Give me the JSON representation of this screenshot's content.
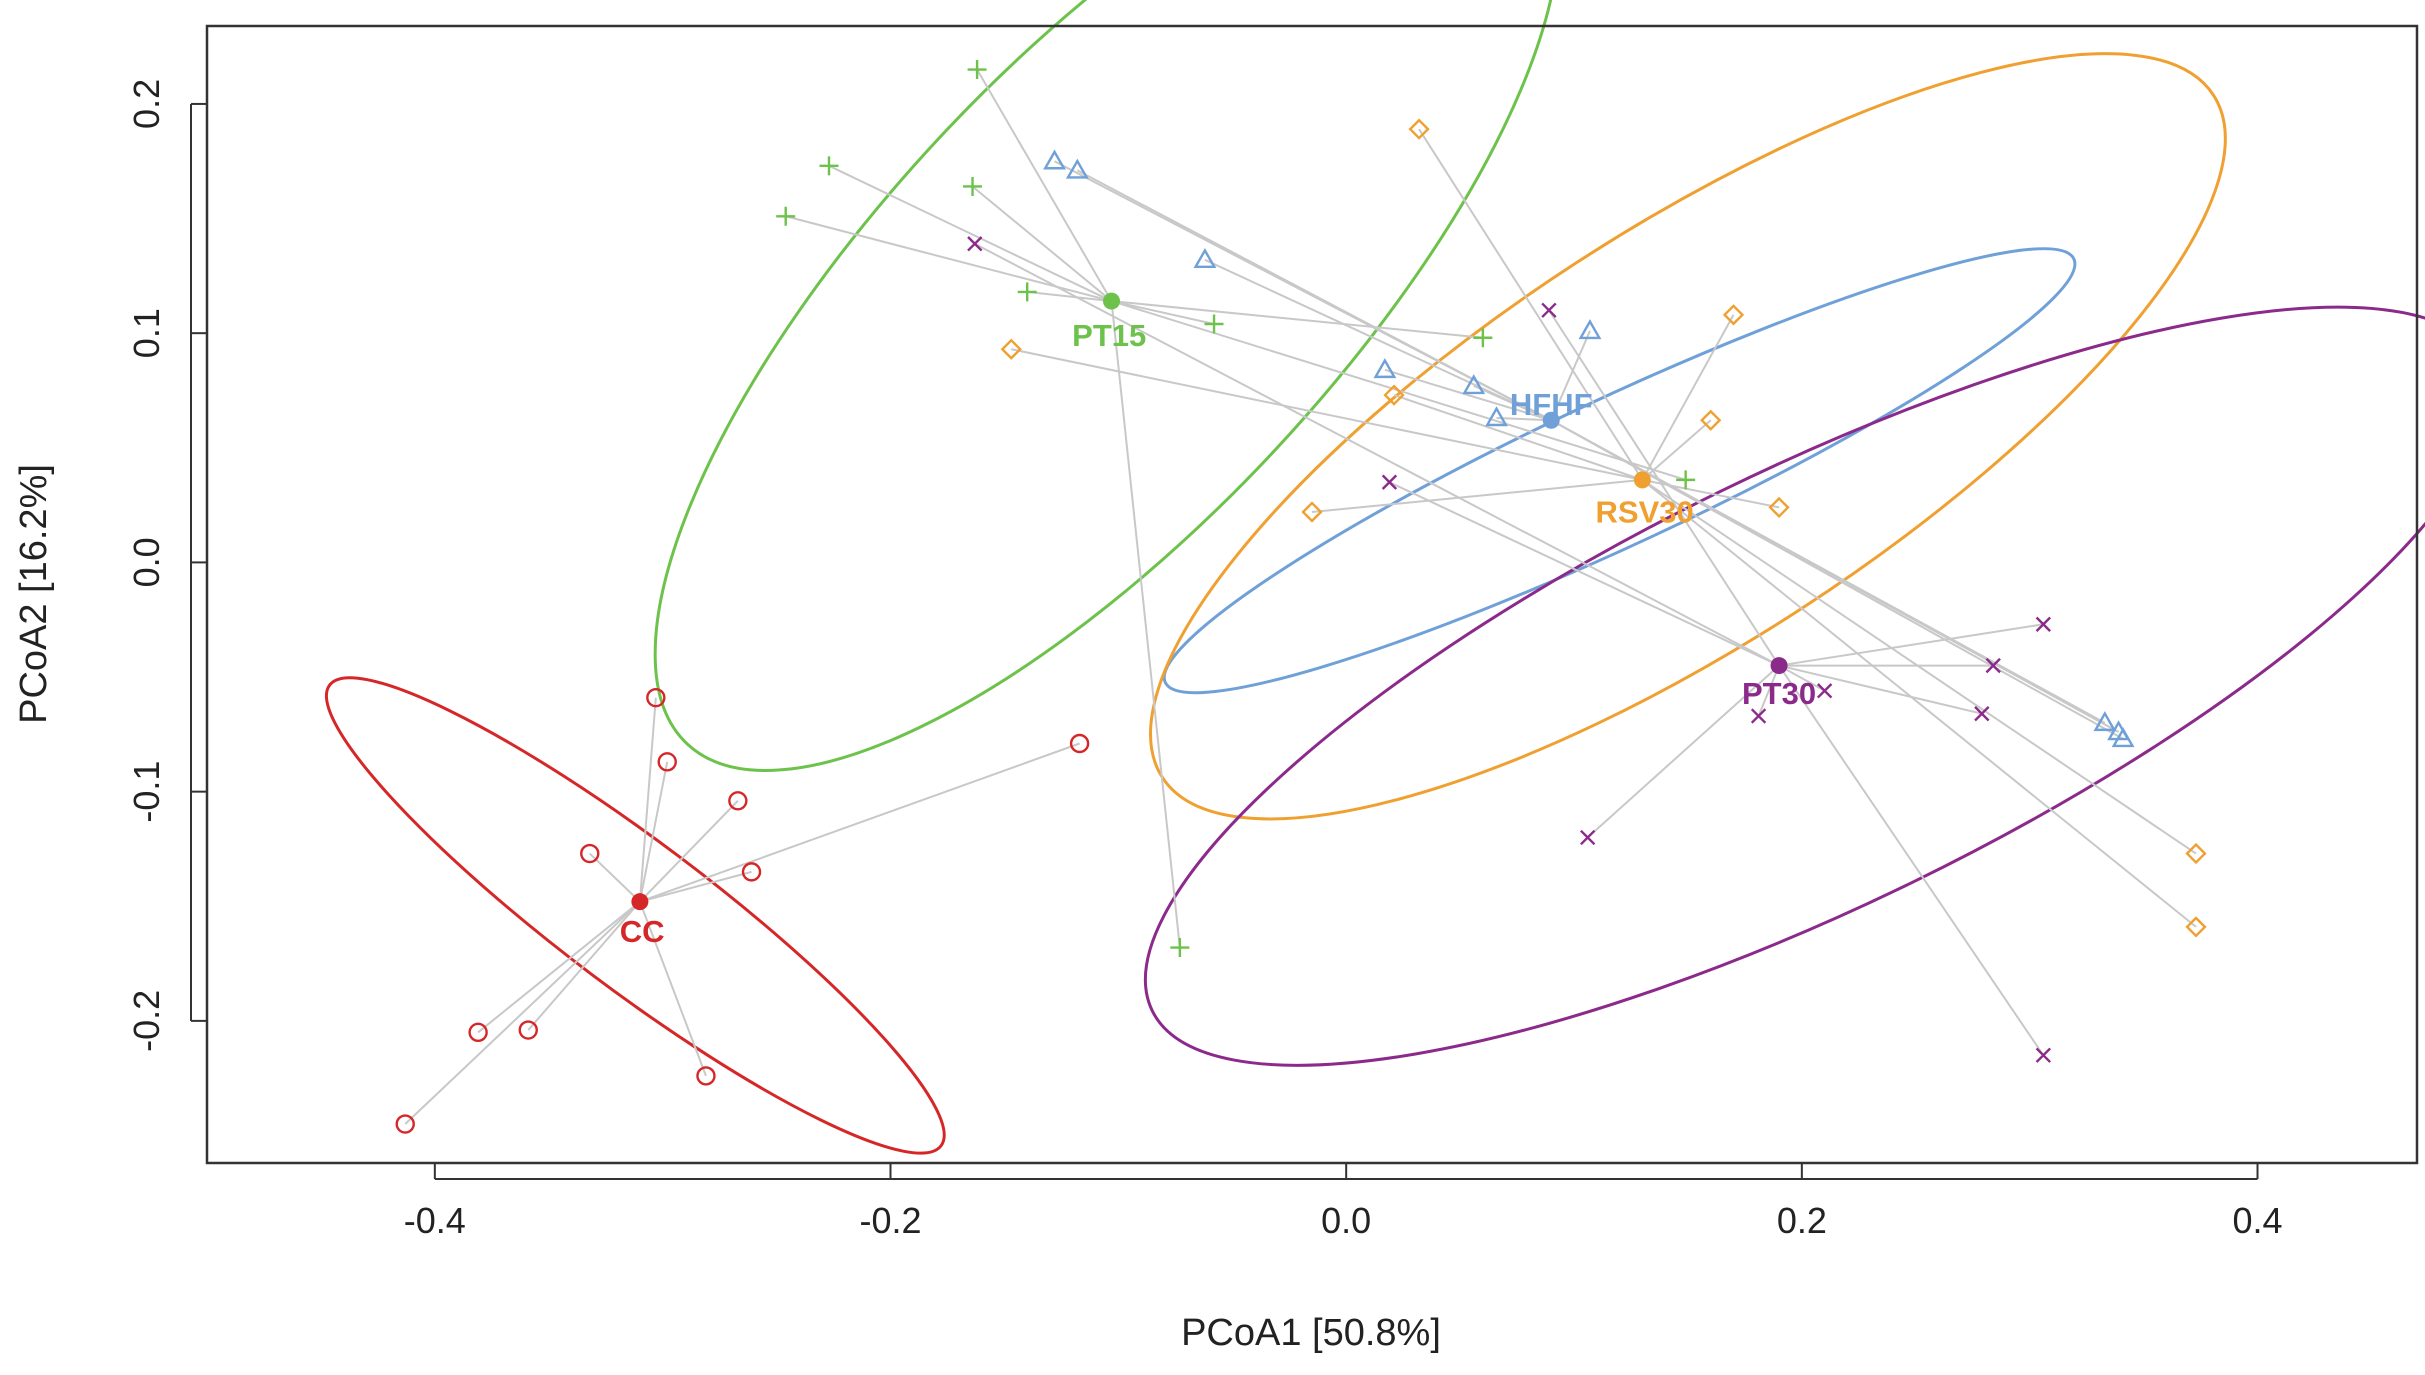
{
  "chart_data": {
    "type": "scatter",
    "title": "",
    "xlabel": "PCoA1 [50.8%]",
    "ylabel": "PCoA2 [16.2%]",
    "xlim": [
      -0.5,
      0.47
    ],
    "ylim": [
      -0.262,
      0.234
    ],
    "x_ticks": [
      -0.4,
      -0.2,
      0.0,
      0.2,
      0.4
    ],
    "x_tick_labels": [
      "-0.4",
      "-0.2",
      "0.0",
      "0.2",
      "0.4"
    ],
    "y_ticks": [
      -0.2,
      -0.1,
      0.0,
      0.1,
      0.2
    ],
    "y_tick_labels": [
      "-0.2",
      "-0.1",
      "0.0",
      "0.1",
      "0.2"
    ],
    "spoke_color": "#c8c8c8",
    "series": [
      {
        "name": "CC",
        "label": "CC",
        "color": "#d62728",
        "marker": "circle",
        "centroid": [
          -0.31,
          -0.148
        ],
        "label_pos": [
          -0.309,
          -0.16
        ],
        "ellipse": {
          "cx": -0.312,
          "cy": -0.154,
          "rx": 0.168,
          "ry": 0.032,
          "angle": 37
        },
        "points": [
          [
            -0.413,
            -0.245
          ],
          [
            -0.381,
            -0.205
          ],
          [
            -0.359,
            -0.204
          ],
          [
            -0.332,
            -0.127
          ],
          [
            -0.303,
            -0.059
          ],
          [
            -0.298,
            -0.087
          ],
          [
            -0.281,
            -0.224
          ],
          [
            -0.267,
            -0.104
          ],
          [
            -0.261,
            -0.135
          ],
          [
            -0.117,
            -0.079
          ]
        ]
      },
      {
        "name": "PT15",
        "label": "PT15",
        "color": "#6cc24a",
        "marker": "plus",
        "centroid": [
          -0.103,
          0.114
        ],
        "label_pos": [
          -0.104,
          0.1
        ],
        "ellipse": {
          "cx": -0.105,
          "cy": 0.117,
          "rx": 0.27,
          "ry": 0.1,
          "angle": -47
        },
        "points": [
          [
            -0.162,
            0.215
          ],
          [
            -0.227,
            0.173
          ],
          [
            -0.164,
            0.164
          ],
          [
            -0.246,
            0.151
          ],
          [
            -0.14,
            0.118
          ],
          [
            -0.058,
            0.104
          ],
          [
            0.06,
            0.098
          ],
          [
            0.149,
            0.036
          ],
          [
            -0.073,
            -0.168
          ]
        ]
      },
      {
        "name": "HFHF",
        "label": "HFHF",
        "color": "#6fa0d8",
        "marker": "triangle",
        "centroid": [
          0.09,
          0.062
        ],
        "label_pos": [
          0.09,
          0.07
        ],
        "ellipse": {
          "cx": 0.12,
          "cy": 0.04,
          "rx": 0.22,
          "ry": 0.032,
          "angle": -25
        },
        "points": [
          [
            -0.128,
            0.175
          ],
          [
            -0.118,
            0.171
          ],
          [
            -0.062,
            0.132
          ],
          [
            0.017,
            0.084
          ],
          [
            0.056,
            0.077
          ],
          [
            0.066,
            0.063
          ],
          [
            0.107,
            0.101
          ],
          [
            0.333,
            -0.07
          ],
          [
            0.339,
            -0.074
          ],
          [
            0.341,
            -0.077
          ]
        ]
      },
      {
        "name": "RSV30",
        "label": "RSV30",
        "color": "#f0a030",
        "marker": "diamond",
        "centroid": [
          0.13,
          0.036
        ],
        "label_pos": [
          0.131,
          0.023
        ],
        "ellipse": {
          "cx": 0.15,
          "cy": 0.055,
          "rx": 0.275,
          "ry": 0.09,
          "angle": -33
        },
        "points": [
          [
            0.032,
            0.189
          ],
          [
            -0.147,
            0.093
          ],
          [
            0.021,
            0.073
          ],
          [
            -0.015,
            0.022
          ],
          [
            0.17,
            0.108
          ],
          [
            0.16,
            0.062
          ],
          [
            0.19,
            0.024
          ],
          [
            0.373,
            -0.127
          ],
          [
            0.373,
            -0.159
          ]
        ]
      },
      {
        "name": "PT30",
        "label": "PT30",
        "color": "#8b2a8b",
        "marker": "cross",
        "centroid": [
          0.19,
          -0.045
        ],
        "label_pos": [
          0.19,
          -0.056
        ],
        "ellipse": {
          "cx": 0.207,
          "cy": -0.054,
          "rx": 0.325,
          "ry": 0.095,
          "angle": -26
        },
        "points": [
          [
            -0.163,
            0.139
          ],
          [
            0.089,
            0.11
          ],
          [
            0.019,
            0.035
          ],
          [
            0.306,
            -0.027
          ],
          [
            0.284,
            -0.045
          ],
          [
            0.21,
            -0.056
          ],
          [
            0.181,
            -0.067
          ],
          [
            0.279,
            -0.066
          ],
          [
            0.106,
            -0.12
          ],
          [
            0.306,
            -0.215
          ]
        ]
      }
    ]
  }
}
